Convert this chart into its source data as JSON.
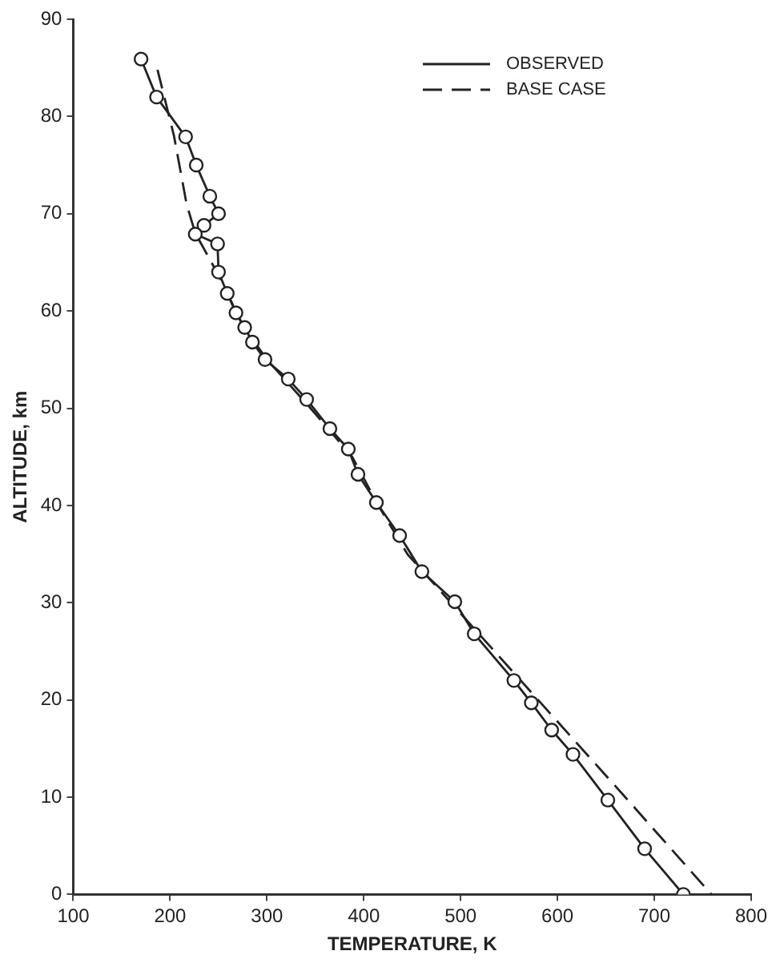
{
  "chart_data": {
    "type": "line",
    "xlabel": "TEMPERATURE, K",
    "ylabel": "ALTITUDE, km",
    "xlim": [
      100,
      800
    ],
    "xticks": [
      100,
      200,
      300,
      400,
      500,
      600,
      700,
      800
    ],
    "ylim": [
      0,
      90
    ],
    "yticks": [
      0,
      10,
      20,
      30,
      40,
      50,
      60,
      70,
      80,
      90
    ],
    "grid": false,
    "legend": "top right",
    "series": [
      {
        "name": "OBSERVED",
        "color": "#222222",
        "marker": "circle",
        "line_style": "solid",
        "x": [
          170,
          186,
          216,
          227,
          241,
          250,
          235,
          226,
          249,
          250,
          259,
          268,
          277,
          285,
          298,
          322,
          341,
          365,
          384,
          394,
          413,
          437,
          460,
          494,
          514,
          555,
          573,
          594,
          616,
          652,
          690,
          730
        ],
        "values": [
          85.9,
          82,
          77.9,
          75,
          71.8,
          70,
          68.8,
          67.9,
          66.9,
          64,
          61.8,
          59.8,
          58.3,
          56.8,
          55,
          53,
          50.9,
          47.9,
          45.8,
          43.2,
          40.3,
          36.9,
          33.2,
          30.1,
          26.8,
          22,
          19.7,
          16.9,
          14.4,
          9.7,
          4.7,
          0
        ]
      },
      {
        "name": "BASE CASE",
        "color": "#222222",
        "marker": "none",
        "line_style": "dashed",
        "x": [
          187,
          204,
          217,
          226,
          251,
          275,
          300,
          345,
          388,
          415,
          445,
          490,
          580,
          670,
          759
        ],
        "values": [
          84.8,
          78,
          71,
          68,
          63.5,
          58.5,
          55,
          50,
          45,
          40,
          35,
          30,
          20,
          10,
          0
        ]
      }
    ]
  }
}
